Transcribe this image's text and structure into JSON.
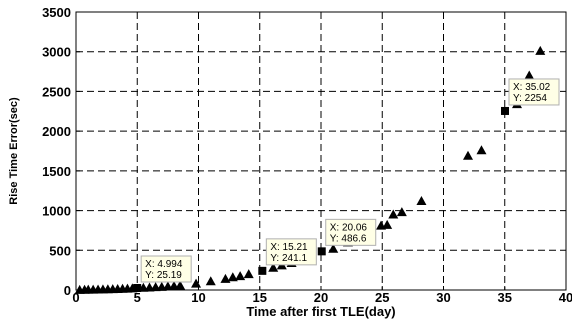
{
  "chart_data": {
    "type": "scatter",
    "title": "",
    "xlabel": "Time after first TLE(day)",
    "ylabel": "Rise Time Error(sec)",
    "xlim": [
      0,
      40
    ],
    "ylim": [
      0,
      3500
    ],
    "xticks": [
      "0",
      "5",
      "10",
      "15",
      "20",
      "25",
      "30",
      "35",
      "40"
    ],
    "yticks": [
      "0",
      "500",
      "1000",
      "1500",
      "2000",
      "2500",
      "3000",
      "3500"
    ],
    "grid": true,
    "grid_style": "dashed",
    "marker": "triangle",
    "marker_color": "#000000",
    "series": [
      {
        "x": [
          0.3,
          0.7,
          1.0,
          1.4,
          1.8,
          2.2,
          2.6,
          3.0,
          3.4,
          3.8,
          4.2,
          4.6,
          5.5,
          6.0,
          6.5,
          7.0,
          7.5,
          8.0,
          8.5,
          9.8,
          11.0,
          12.2,
          12.8,
          13.4,
          14.1,
          16.1,
          16.8,
          17.6,
          18.3,
          19.1,
          21.0,
          22.2,
          22.7,
          23.4,
          24.0,
          24.9,
          25.4,
          25.9,
          26.6,
          28.2,
          32.0,
          33.1,
          36.0,
          37.0,
          37.9
        ],
        "y": [
          2,
          3,
          4,
          5,
          6,
          8,
          10,
          11,
          13,
          15,
          18,
          21,
          28,
          32,
          36,
          40,
          45,
          50,
          56,
          80,
          110,
          140,
          160,
          175,
          200,
          280,
          310,
          340,
          370,
          420,
          520,
          600,
          620,
          660,
          700,
          810,
          820,
          950,
          980,
          1120,
          1690,
          1760,
          2340,
          2700,
          3010
        ]
      }
    ],
    "datatips": [
      {
        "x": 4.994,
        "y": 25.19,
        "x_text": "X: 4.994",
        "y_text": "Y: 25.19"
      },
      {
        "x": 15.21,
        "y": 241.1,
        "x_text": "X: 15.21",
        "y_text": "Y: 241.1"
      },
      {
        "x": 20.06,
        "y": 486.6,
        "x_text": "X: 20.06",
        "y_text": "Y: 486.6"
      },
      {
        "x": 35.02,
        "y": 2254,
        "x_text": "X: 35.02",
        "y_text": "Y: 2254"
      }
    ]
  }
}
